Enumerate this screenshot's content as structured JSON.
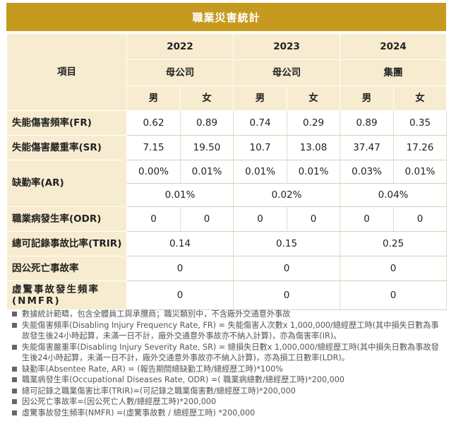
{
  "title": "職業災害統計",
  "header": {
    "item_label": "項目",
    "years": [
      "2022",
      "2023",
      "2024"
    ],
    "entities": [
      "母公司",
      "母公司",
      "集團"
    ],
    "genders": [
      "男",
      "女",
      "男",
      "女",
      "男",
      "女"
    ]
  },
  "rows": {
    "fr": {
      "label": "失能傷害頻率(FR)",
      "values": [
        "0.62",
        "0.89",
        "0.74",
        "0.29",
        "0.89",
        "0.35"
      ]
    },
    "sr": {
      "label": "失能傷害嚴重率(SR)",
      "values": [
        "7.15",
        "19.50",
        "10.7",
        "13.08",
        "37.47",
        "17.26"
      ]
    },
    "ar": {
      "label": "缺勤率(AR)",
      "values": [
        "0.00%",
        "0.01%",
        "0.01%",
        "0.01%",
        "0.03%",
        "0.01%"
      ],
      "totals": [
        "0.01%",
        "0.02%",
        "0.04%"
      ]
    },
    "odr": {
      "label": "職業病發生率(ODR)",
      "values": [
        "0",
        "0",
        "0",
        "0",
        "0",
        "0"
      ]
    },
    "trir": {
      "label": "總可記錄事故比率(TRIR)",
      "totals": [
        "0.14",
        "0.15",
        "0.25"
      ]
    },
    "fatal": {
      "label": "因公死亡事故率",
      "totals": [
        "0",
        "0",
        "0"
      ]
    },
    "nmfr": {
      "label": "虛驚事故發生頻率(NMFR)",
      "totals": [
        "0",
        "0",
        "0"
      ]
    }
  },
  "notes": [
    "數據統計範疇，包含全體員工與承攬商；職災類別中，不含廠外交通意外事故",
    "失能傷害頻率(Disabling Injury Frequency Rate, FR) = 失能傷害人次數x 1,000,000/總經歷工時(其中損失日數為事故發生後24小時起算，未滿一日不計，廠外交通意外事故亦不納入計算)，亦為傷害率(IR)。",
    "失能傷害嚴重率(Disabling Injury Severity Rate, SR) = 總損失日數x 1,000,000/總經歷工時(其中損失日數為事故發生後24小時起算，未滿一日不計，廠外交通意外事故亦不納入計算)，亦為損工日數率(LDR)。",
    "缺勤率(Absentee Rate, AR) = (報告期間總缺勤工時/總經歷工時)*100%",
    "職業病發生率(Occupational Diseases Rate, ODR) =( 職業病總數/總經歷工時)*200,000",
    "總可記錄之職業傷害比率(TRIR)=(可記錄之職業傷害數/總經歷工時)*200,000",
    "因公死亡事故率=(因公死亡人數/總經歷工時)*200,000",
    "虛驚事故發生頻率(NMFR) =(虛驚事故數 / 總經歷工時) *200,000"
  ]
}
